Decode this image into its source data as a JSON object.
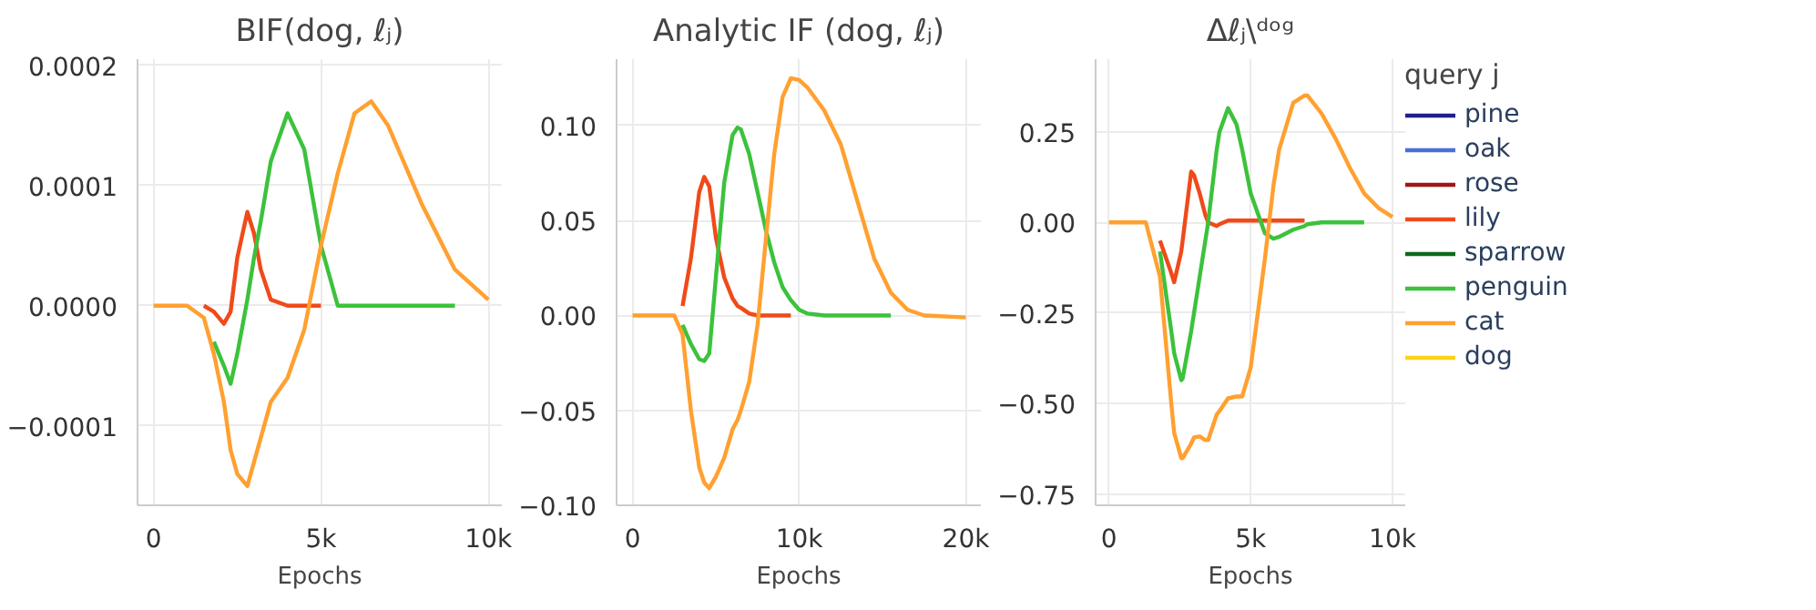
{
  "chart_data": [
    {
      "type": "line",
      "title": "BIF(dog, ℓⱼ)",
      "xlabel": "Epochs",
      "xlim": [
        -480,
        10400
      ],
      "ylim": [
        -0.000166,
        0.000205
      ],
      "xticks": [
        {
          "value": 0,
          "label": "0"
        },
        {
          "value": 5000,
          "label": "5k"
        },
        {
          "value": 10000,
          "label": "10k"
        }
      ],
      "yticks": [
        {
          "value": -0.0001,
          "label": "−0.0001"
        },
        {
          "value": 0,
          "label": "0.0000"
        },
        {
          "value": 0.0001,
          "label": "0.0001"
        },
        {
          "value": 0.0002,
          "label": "0.0002"
        }
      ],
      "grid": true,
      "legend": false,
      "x": [
        0,
        1000,
        1500,
        1800,
        2100,
        2300,
        2500,
        2800,
        3000,
        3200,
        3500,
        4000,
        4500,
        5000,
        5500,
        6000,
        6500,
        7000,
        8000,
        9000,
        10000
      ],
      "series": [
        {
          "color": "#f04a1a",
          "values": [
            null,
            null,
            0,
            -5e-06,
            -1.5e-05,
            -5e-06,
            4e-05,
            7.8e-05,
            6e-05,
            3e-05,
            5e-06,
            0,
            0,
            0,
            null,
            null,
            null,
            null,
            null,
            null,
            null
          ]
        },
        {
          "color": "#3cc23c",
          "values": [
            null,
            null,
            null,
            -3e-05,
            -5e-05,
            -6.5e-05,
            -4e-05,
            5e-06,
            4e-05,
            7e-05,
            0.00012,
            0.00016,
            0.00013,
            5e-05,
            0,
            0,
            0,
            0,
            0,
            0,
            null
          ]
        },
        {
          "color": "#ffa030",
          "values": [
            0,
            0,
            -1e-05,
            -4e-05,
            -8e-05,
            -0.00012,
            -0.00014,
            -0.00015,
            -0.00013,
            -0.00011,
            -8e-05,
            -6e-05,
            -2e-05,
            5e-05,
            0.00011,
            0.00016,
            0.00017,
            0.00015,
            8.5e-05,
            3e-05,
            5e-06
          ]
        }
      ]
    },
    {
      "type": "line",
      "title": "Analytic IF (dog, ℓⱼ)",
      "xlabel": "Epochs",
      "xlim": [
        -960,
        20900
      ],
      "ylim": [
        -0.1,
        0.135
      ],
      "xticks": [
        {
          "value": 0,
          "label": "0"
        },
        {
          "value": 10000,
          "label": "10k"
        },
        {
          "value": 20000,
          "label": "20k"
        }
      ],
      "yticks": [
        {
          "value": -0.1,
          "label": "−0.10"
        },
        {
          "value": -0.05,
          "label": "−0.05"
        },
        {
          "value": 0,
          "label": "0.00"
        },
        {
          "value": 0.05,
          "label": "0.05"
        },
        {
          "value": 0.1,
          "label": "0.10"
        }
      ],
      "grid": true,
      "legend": false,
      "x": [
        0,
        2500,
        3000,
        3500,
        4000,
        4300,
        4600,
        5000,
        5500,
        6000,
        6300,
        6500,
        7000,
        7500,
        8000,
        8500,
        9000,
        9500,
        10000,
        10500,
        11500,
        12500,
        13500,
        14500,
        15500,
        16500,
        17500,
        20000
      ],
      "series": [
        {
          "color": "#f04a1a",
          "values": [
            null,
            null,
            0.005,
            0.03,
            0.065,
            0.073,
            0.068,
            0.041,
            0.02,
            0.009,
            0.005,
            0.004,
            0.001,
            0,
            0,
            0,
            0,
            0,
            null,
            null,
            null,
            null,
            null,
            null,
            null,
            null,
            null,
            null
          ]
        },
        {
          "color": "#3cc23c",
          "values": [
            null,
            null,
            -0.005,
            -0.015,
            -0.023,
            -0.024,
            -0.02,
            0.02,
            0.07,
            0.095,
            0.099,
            0.098,
            0.085,
            0.065,
            0.045,
            0.028,
            0.015,
            0.008,
            0.003,
            0.001,
            0,
            0,
            0,
            0,
            0,
            null,
            null,
            null
          ]
        },
        {
          "color": "#ffa030",
          "values": [
            0,
            0,
            -0.01,
            -0.05,
            -0.08,
            -0.088,
            -0.091,
            -0.085,
            -0.075,
            -0.06,
            -0.055,
            -0.05,
            -0.035,
            -0.005,
            0.04,
            0.085,
            0.115,
            0.125,
            0.124,
            0.12,
            0.108,
            0.09,
            0.06,
            0.03,
            0.012,
            0.003,
            0,
            -0.001
          ]
        }
      ]
    },
    {
      "type": "line",
      "title": "Δℓⱼ\\ᵈᵒᵍ",
      "xlabel": "Epochs",
      "legend_title": "query j",
      "xlim": [
        -470,
        10450
      ],
      "ylim": [
        -0.78,
        0.45
      ],
      "xticks": [
        {
          "value": 0,
          "label": "0"
        },
        {
          "value": 5000,
          "label": "5k"
        },
        {
          "value": 10000,
          "label": "10k"
        }
      ],
      "yticks": [
        {
          "value": -0.75,
          "label": "−0.75"
        },
        {
          "value": -0.5,
          "label": "−0.50"
        },
        {
          "value": -0.25,
          "label": "−0.25"
        },
        {
          "value": 0,
          "label": "0.00"
        },
        {
          "value": 0.25,
          "label": "0.25"
        }
      ],
      "grid": true,
      "legend": "right",
      "x": [
        0,
        1300,
        1800,
        2200,
        2300,
        2550,
        2600,
        2900,
        3000,
        3200,
        3400,
        3500,
        3800,
        3900,
        4200,
        4500,
        4700,
        5000,
        5500,
        5800,
        6000,
        6500,
        6900,
        7000,
        7500,
        8000,
        8500,
        9000,
        9500,
        10000
      ],
      "series": [
        {
          "name": "pine",
          "color": "#1f1f8f",
          "values": [
            null,
            null,
            null,
            null,
            null,
            null,
            null,
            null,
            null,
            null,
            null,
            null,
            null,
            null,
            null,
            null,
            null,
            null,
            null,
            null,
            null,
            null,
            null,
            null,
            null,
            null,
            null,
            null,
            null,
            null
          ]
        },
        {
          "name": "oak",
          "color": "#4a6fdc",
          "values": [
            null,
            null,
            null,
            null,
            null,
            null,
            null,
            null,
            null,
            null,
            null,
            null,
            null,
            null,
            null,
            null,
            null,
            null,
            null,
            null,
            null,
            null,
            null,
            null,
            null,
            null,
            null,
            null,
            null,
            null
          ]
        },
        {
          "name": "rose",
          "color": "#a01515",
          "values": [
            null,
            null,
            null,
            null,
            null,
            null,
            null,
            null,
            null,
            null,
            null,
            null,
            null,
            null,
            null,
            null,
            null,
            null,
            null,
            null,
            null,
            null,
            null,
            null,
            null,
            null,
            null,
            null,
            null,
            null
          ]
        },
        {
          "name": "lily",
          "color": "#f04a1a",
          "values": [
            null,
            null,
            -0.05,
            -0.14,
            -0.165,
            -0.08,
            -0.05,
            0.14,
            0.13,
            0.08,
            0.02,
            0,
            -0.01,
            -0.005,
            0.005,
            0.005,
            0.005,
            0.005,
            0.005,
            0.005,
            0.005,
            0.005,
            0.005,
            null,
            null,
            null,
            null,
            null,
            null,
            null
          ]
        },
        {
          "name": "sparrow",
          "color": "#0b6b1b",
          "values": [
            null,
            null,
            null,
            null,
            null,
            null,
            null,
            null,
            null,
            null,
            null,
            null,
            null,
            null,
            null,
            null,
            null,
            null,
            null,
            null,
            null,
            null,
            null,
            null,
            null,
            null,
            null,
            null,
            null,
            null
          ]
        },
        {
          "name": "penguin",
          "color": "#3cc23c",
          "values": [
            null,
            null,
            -0.08,
            -0.3,
            -0.36,
            -0.435,
            -0.43,
            -0.3,
            -0.25,
            -0.15,
            -0.05,
            0,
            0.2,
            0.25,
            0.315,
            0.27,
            0.2,
            0.08,
            -0.03,
            -0.045,
            -0.04,
            -0.02,
            -0.01,
            -0.005,
            0,
            0,
            0,
            0,
            null,
            null
          ]
        },
        {
          "name": "cat",
          "color": "#ffa030",
          "values": [
            0,
            0,
            -0.15,
            -0.5,
            -0.58,
            -0.65,
            -0.65,
            -0.61,
            -0.593,
            -0.59,
            -0.6,
            -0.6,
            -0.53,
            -0.52,
            -0.485,
            -0.48,
            -0.48,
            -0.4,
            -0.1,
            0.1,
            0.2,
            0.33,
            0.35,
            0.35,
            0.3,
            0.23,
            0.15,
            0.08,
            0.04,
            0.015
          ]
        },
        {
          "name": "dog",
          "color": "#ffd21a",
          "values": [
            null,
            null,
            null,
            null,
            null,
            null,
            null,
            null,
            null,
            null,
            null,
            null,
            null,
            null,
            null,
            null,
            null,
            null,
            null,
            null,
            null,
            null,
            null,
            null,
            null,
            null,
            null,
            null,
            null,
            null
          ]
        }
      ]
    }
  ]
}
